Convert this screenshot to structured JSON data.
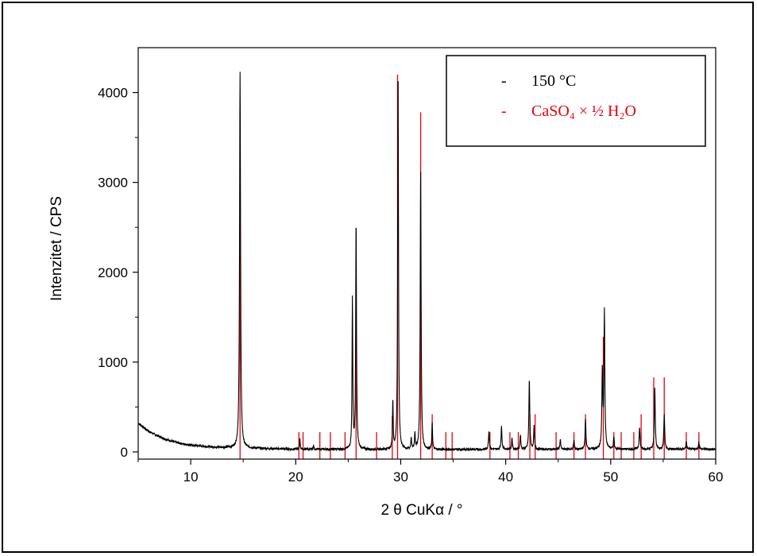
{
  "chart_data": {
    "type": "line",
    "xlabel": "2 θ CuKα / °",
    "ylabel": "Intenzitet / CPS",
    "xlim": [
      5,
      60
    ],
    "ylim": [
      -80,
      4500
    ],
    "xticks": [
      10,
      20,
      30,
      40,
      50,
      60
    ],
    "yticks": [
      0,
      1000,
      2000,
      3000,
      4000
    ],
    "grid": false,
    "legend_position": "top-right",
    "colors": {
      "measured": "#000000",
      "reference": "#e8000b"
    },
    "legend": {
      "measured_marker": "-",
      "measured_label": "150 °C",
      "reference_marker": "-",
      "reference_label": "CaSO₄ × ½ H₂O"
    },
    "series": [
      {
        "name": "150 °C",
        "kind": "measured",
        "baseline": [
          [
            5,
            320
          ],
          [
            6,
            230
          ],
          [
            7,
            170
          ],
          [
            8,
            125
          ],
          [
            9,
            95
          ],
          [
            10,
            75
          ],
          [
            12,
            55
          ],
          [
            14,
            45
          ],
          [
            20,
            30
          ],
          [
            30,
            25
          ],
          [
            40,
            28
          ],
          [
            50,
            30
          ],
          [
            60,
            30
          ]
        ],
        "peaks": [
          [
            14.7,
            4200,
            0.11
          ],
          [
            20.4,
            110,
            0.08
          ],
          [
            21.7,
            40,
            0.08
          ],
          [
            25.4,
            1680,
            0.08
          ],
          [
            25.75,
            2560,
            0.09
          ],
          [
            29.25,
            540,
            0.08
          ],
          [
            29.75,
            4300,
            0.09
          ],
          [
            31.0,
            130,
            0.08
          ],
          [
            31.35,
            180,
            0.08
          ],
          [
            31.9,
            3100,
            0.1
          ],
          [
            33.0,
            300,
            0.08
          ],
          [
            38.4,
            200,
            0.1
          ],
          [
            39.6,
            250,
            0.1
          ],
          [
            40.6,
            130,
            0.09
          ],
          [
            41.4,
            160,
            0.09
          ],
          [
            42.25,
            780,
            0.1
          ],
          [
            42.7,
            250,
            0.09
          ],
          [
            45.2,
            110,
            0.09
          ],
          [
            46.5,
            100,
            0.09
          ],
          [
            47.6,
            330,
            0.1
          ],
          [
            49.2,
            850,
            0.1
          ],
          [
            49.4,
            1540,
            0.1
          ],
          [
            50.3,
            140,
            0.09
          ],
          [
            52.75,
            240,
            0.1
          ],
          [
            54.2,
            680,
            0.1
          ],
          [
            55.1,
            400,
            0.1
          ],
          [
            57.2,
            80,
            0.1
          ],
          [
            58.4,
            80,
            0.1
          ]
        ]
      },
      {
        "name": "CaSO₄ × ½ H₂O",
        "kind": "reference",
        "sticks": [
          [
            14.7,
            3350
          ],
          [
            20.3,
            220
          ],
          [
            20.7,
            220
          ],
          [
            22.3,
            220
          ],
          [
            23.3,
            220
          ],
          [
            24.7,
            220
          ],
          [
            25.75,
            2100
          ],
          [
            27.7,
            220
          ],
          [
            29.2,
            400
          ],
          [
            29.7,
            4200
          ],
          [
            31.9,
            3780
          ],
          [
            33.0,
            420
          ],
          [
            34.3,
            220
          ],
          [
            34.9,
            220
          ],
          [
            38.5,
            220
          ],
          [
            40.4,
            220
          ],
          [
            41.2,
            220
          ],
          [
            42.3,
            420
          ],
          [
            42.8,
            420
          ],
          [
            44.8,
            220
          ],
          [
            46.5,
            220
          ],
          [
            47.6,
            420
          ],
          [
            49.3,
            1280
          ],
          [
            50.3,
            220
          ],
          [
            51.0,
            220
          ],
          [
            52.2,
            220
          ],
          [
            52.9,
            420
          ],
          [
            54.1,
            830
          ],
          [
            55.1,
            830
          ],
          [
            57.2,
            220
          ],
          [
            58.4,
            220
          ]
        ]
      }
    ]
  }
}
